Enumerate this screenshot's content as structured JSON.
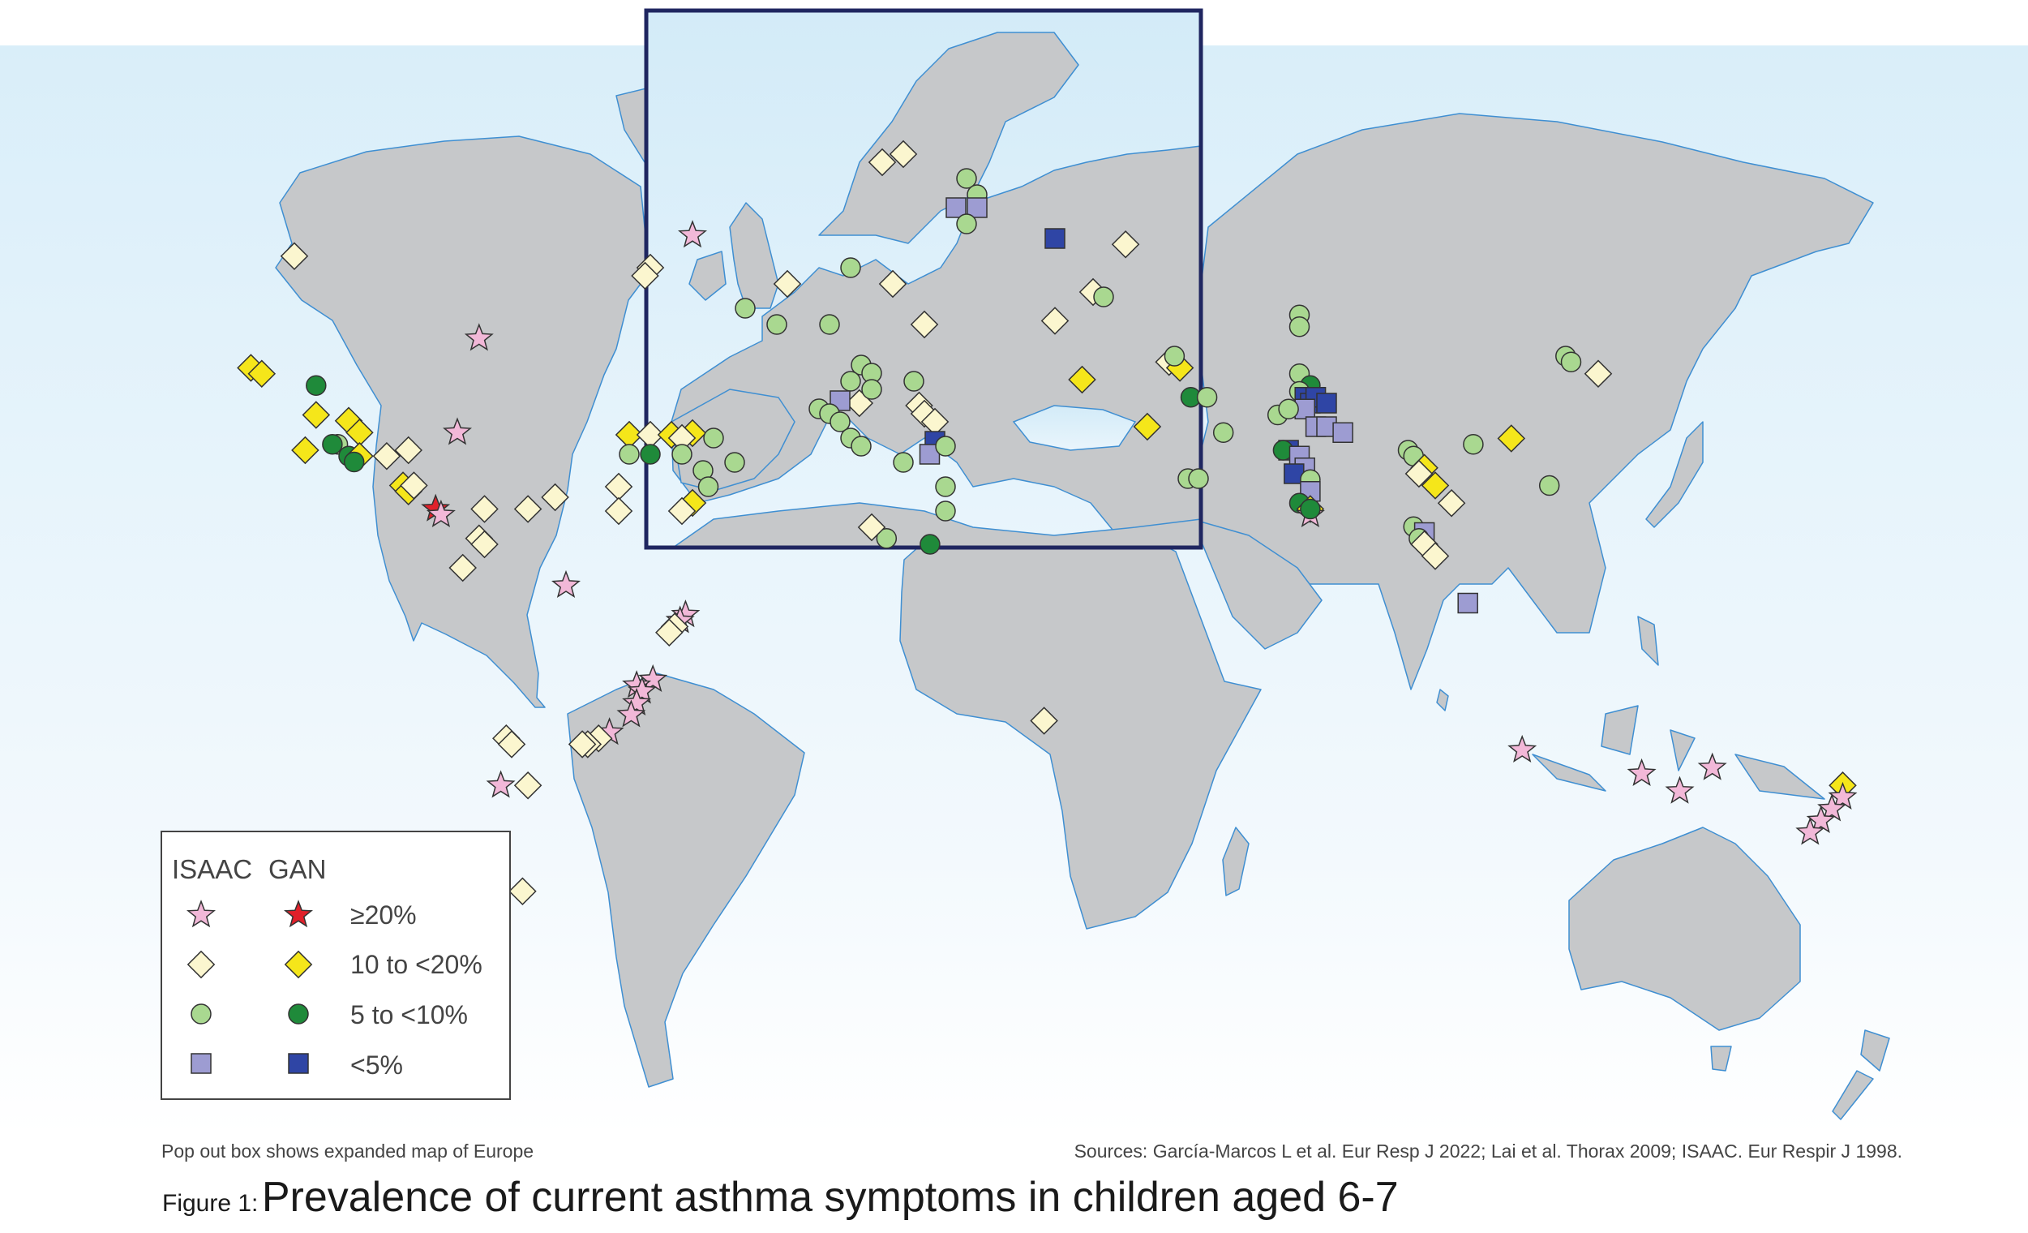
{
  "legend": {
    "header_isaac": "ISAAC",
    "header_gan": "GAN",
    "rows": [
      {
        "label": "≥20%",
        "isaac_symbol": "star",
        "isaac_color": "#f2b8d8",
        "gan_color": "#e0202a"
      },
      {
        "label": "10 to <20%",
        "isaac_symbol": "diamond",
        "isaac_color": "#fbf6cf",
        "gan_color": "#f5e61a"
      },
      {
        "label": "5 to <10%",
        "isaac_symbol": "circle",
        "isaac_color": "#a9d890",
        "gan_color": "#1f8a3a"
      },
      {
        "label": "<5%",
        "isaac_symbol": "square",
        "isaac_color": "#9d9cd2",
        "gan_color": "#2f45a5"
      }
    ]
  },
  "notes": {
    "inset": "Pop out box shows expanded map of Europe",
    "sources": "Sources: García-Marcos L et al. Eur Resp J 2022; Lai et al. Thorax 2009; ISAAC. Eur Respir J 1998."
  },
  "caption": {
    "label": "Figure 1:",
    "title": "Prevalence of current asthma symptoms in children aged 6-7"
  },
  "colors": {
    "ocean_top": "#d9eef9",
    "ocean_bottom": "#ffffff",
    "land": "#c6c8ca",
    "borders": "#3f8fd2",
    "inset_frame": "#1f2660"
  },
  "map_markers": [
    {
      "shape": "diamond",
      "level": "isaac_10_20",
      "lon": -110,
      "lat": 53
    },
    {
      "shape": "star",
      "level": "isaac_20",
      "lon": -76,
      "lat": 39
    },
    {
      "shape": "diamond",
      "level": "gan_10_20",
      "lon": -118,
      "lat": 34
    },
    {
      "shape": "diamond",
      "level": "gan_10_20",
      "lon": -116,
      "lat": 33
    },
    {
      "shape": "circle",
      "level": "gan_5_10",
      "lon": -106,
      "lat": 31
    },
    {
      "shape": "diamond",
      "level": "gan_10_20",
      "lon": -106,
      "lat": 26
    },
    {
      "shape": "diamond",
      "level": "gan_10_20",
      "lon": -100,
      "lat": 25
    },
    {
      "shape": "diamond",
      "level": "gan_10_20",
      "lon": -98,
      "lat": 23
    },
    {
      "shape": "circle",
      "level": "isaac_5_10",
      "lon": -102,
      "lat": 21
    },
    {
      "shape": "diamond",
      "level": "gan_10_20",
      "lon": -108,
      "lat": 20
    },
    {
      "shape": "circle",
      "level": "gan_5_10",
      "lon": -103,
      "lat": 21
    },
    {
      "shape": "circle",
      "level": "gan_5_10",
      "lon": -100,
      "lat": 19
    },
    {
      "shape": "diamond",
      "level": "gan_10_20",
      "lon": -98,
      "lat": 19
    },
    {
      "shape": "circle",
      "level": "gan_5_10",
      "lon": -99,
      "lat": 18
    },
    {
      "shape": "diamond",
      "level": "isaac_10_20",
      "lon": -93,
      "lat": 19
    },
    {
      "shape": "diamond",
      "level": "isaac_10_20",
      "lon": -89,
      "lat": 20
    },
    {
      "shape": "star",
      "level": "isaac_20",
      "lon": -80,
      "lat": 23
    },
    {
      "shape": "diamond",
      "level": "gan_10_20",
      "lon": -90,
      "lat": 14
    },
    {
      "shape": "diamond",
      "level": "gan_10_20",
      "lon": -89,
      "lat": 13
    },
    {
      "shape": "diamond",
      "level": "isaac_10_20",
      "lon": -88,
      "lat": 14
    },
    {
      "shape": "star",
      "level": "gan_20",
      "lon": -84,
      "lat": 10
    },
    {
      "shape": "star",
      "level": "isaac_20",
      "lon": -83,
      "lat": 9
    },
    {
      "shape": "diamond",
      "level": "isaac_10_20",
      "lon": -75,
      "lat": 10
    },
    {
      "shape": "diamond",
      "level": "isaac_10_20",
      "lon": -67,
      "lat": 10
    },
    {
      "shape": "diamond",
      "level": "isaac_10_20",
      "lon": -62,
      "lat": 12
    },
    {
      "shape": "diamond",
      "level": "isaac_10_20",
      "lon": -76,
      "lat": 5
    },
    {
      "shape": "diamond",
      "level": "isaac_10_20",
      "lon": -75,
      "lat": 4
    },
    {
      "shape": "diamond",
      "level": "isaac_10_20",
      "lon": -79,
      "lat": 0
    },
    {
      "shape": "star",
      "level": "isaac_20",
      "lon": -60,
      "lat": -3
    },
    {
      "shape": "star",
      "level": "isaac_20",
      "lon": -38,
      "lat": -8
    },
    {
      "shape": "star",
      "level": "isaac_20",
      "lon": -39,
      "lat": -9
    },
    {
      "shape": "diamond",
      "level": "isaac_10_20",
      "lon": -40,
      "lat": -10
    },
    {
      "shape": "diamond",
      "level": "isaac_10_20",
      "lon": -41,
      "lat": -11
    },
    {
      "shape": "star",
      "level": "isaac_20",
      "lon": -44,
      "lat": -19
    },
    {
      "shape": "star",
      "level": "isaac_20",
      "lon": -47,
      "lat": -20
    },
    {
      "shape": "star",
      "level": "isaac_20",
      "lon": -46,
      "lat": -21
    },
    {
      "shape": "star",
      "level": "isaac_20",
      "lon": -47,
      "lat": -23
    },
    {
      "shape": "star",
      "level": "isaac_20",
      "lon": -48,
      "lat": -25
    },
    {
      "shape": "star",
      "level": "isaac_20",
      "lon": -52,
      "lat": -28
    },
    {
      "shape": "diamond",
      "level": "isaac_10_20",
      "lon": -54,
      "lat": -29
    },
    {
      "shape": "diamond",
      "level": "isaac_10_20",
      "lon": -56,
      "lat": -30
    },
    {
      "shape": "diamond",
      "level": "isaac_10_20",
      "lon": -57,
      "lat": -30
    },
    {
      "shape": "diamond",
      "level": "isaac_10_20",
      "lon": -71,
      "lat": -29
    },
    {
      "shape": "diamond",
      "level": "isaac_10_20",
      "lon": -70,
      "lat": -30
    },
    {
      "shape": "star",
      "level": "isaac_20",
      "lon": -72,
      "lat": -37
    },
    {
      "shape": "diamond",
      "level": "isaac_10_20",
      "lon": -67,
      "lat": -37
    },
    {
      "shape": "diamond",
      "level": "isaac_10_20",
      "lon": -68,
      "lat": -55
    },
    {
      "shape": "diamond",
      "level": "isaac_10_20",
      "lon": -6,
      "lat": 28
    },
    {
      "shape": "circle",
      "level": "isaac_5_10",
      "lon": -1,
      "lat": 5
    },
    {
      "shape": "circle",
      "level": "gan_5_10",
      "lon": 7,
      "lat": 4
    },
    {
      "shape": "diamond",
      "level": "isaac_10_20",
      "lon": 28,
      "lat": -26
    },
    {
      "shape": "diamond",
      "level": "isaac_10_20",
      "lon": 30,
      "lat": 42
    },
    {
      "shape": "diamond",
      "level": "isaac_10_20",
      "lon": 43,
      "lat": 55
    },
    {
      "shape": "square",
      "level": "gan_lt5",
      "lon": 30,
      "lat": 56
    },
    {
      "shape": "diamond",
      "level": "gan_10_20",
      "lon": 35,
      "lat": 32
    },
    {
      "shape": "diamond",
      "level": "gan_10_20",
      "lon": 47,
      "lat": 24
    },
    {
      "shape": "diamond",
      "level": "isaac_10_20",
      "lon": 51,
      "lat": 35
    },
    {
      "shape": "diamond",
      "level": "gan_10_20",
      "lon": 53,
      "lat": 34
    },
    {
      "shape": "circle",
      "level": "isaac_5_10",
      "lon": 52,
      "lat": 36
    },
    {
      "shape": "circle",
      "level": "gan_5_10",
      "lon": 55,
      "lat": 29
    },
    {
      "shape": "circle",
      "level": "isaac_5_10",
      "lon": 58,
      "lat": 29
    },
    {
      "shape": "circle",
      "level": "isaac_5_10",
      "lon": 61,
      "lat": 23
    },
    {
      "shape": "circle",
      "level": "isaac_5_10",
      "lon": 75,
      "lat": 43
    },
    {
      "shape": "circle",
      "level": "isaac_5_10",
      "lon": 75,
      "lat": 41
    },
    {
      "shape": "circle",
      "level": "isaac_5_10",
      "lon": 75,
      "lat": 33
    },
    {
      "shape": "circle",
      "level": "gan_5_10",
      "lon": 77,
      "lat": 31
    },
    {
      "shape": "circle",
      "level": "isaac_5_10",
      "lon": 75,
      "lat": 30
    },
    {
      "shape": "square",
      "level": "gan_lt5",
      "lon": 76,
      "lat": 29
    },
    {
      "shape": "square",
      "level": "gan_lt5",
      "lon": 77,
      "lat": 28
    },
    {
      "shape": "square",
      "level": "gan_lt5",
      "lon": 78,
      "lat": 29
    },
    {
      "shape": "square",
      "level": "gan_lt5",
      "lon": 80,
      "lat": 28
    },
    {
      "shape": "square",
      "level": "isaac_lt5",
      "lon": 76,
      "lat": 27
    },
    {
      "shape": "circle",
      "level": "isaac_5_10",
      "lon": 71,
      "lat": 26
    },
    {
      "shape": "circle",
      "level": "isaac_5_10",
      "lon": 73,
      "lat": 27
    },
    {
      "shape": "square",
      "level": "isaac_lt5",
      "lon": 78,
      "lat": 24
    },
    {
      "shape": "square",
      "level": "isaac_lt5",
      "lon": 80,
      "lat": 24
    },
    {
      "shape": "square",
      "level": "isaac_lt5",
      "lon": 83,
      "lat": 23
    },
    {
      "shape": "square",
      "level": "gan_lt5",
      "lon": 73,
      "lat": 20
    },
    {
      "shape": "circle",
      "level": "gan_5_10",
      "lon": 72,
      "lat": 20
    },
    {
      "shape": "square",
      "level": "isaac_lt5",
      "lon": 75,
      "lat": 19
    },
    {
      "shape": "square",
      "level": "isaac_lt5",
      "lon": 76,
      "lat": 17
    },
    {
      "shape": "square",
      "level": "gan_lt5",
      "lon": 74,
      "lat": 16
    },
    {
      "shape": "circle",
      "level": "isaac_5_10",
      "lon": 77,
      "lat": 15
    },
    {
      "shape": "square",
      "level": "isaac_lt5",
      "lon": 77,
      "lat": 13
    },
    {
      "shape": "circle",
      "level": "gan_5_10",
      "lon": 75,
      "lat": 11
    },
    {
      "shape": "diamond",
      "level": "gan_10_20",
      "lon": 77,
      "lat": 10
    },
    {
      "shape": "star",
      "level": "isaac_20",
      "lon": 77,
      "lat": 9
    },
    {
      "shape": "circle",
      "level": "gan_5_10",
      "lon": 77,
      "lat": 10
    },
    {
      "shape": "circle",
      "level": "isaac_5_10",
      "lon": 95,
      "lat": 20
    },
    {
      "shape": "circle",
      "level": "isaac_5_10",
      "lon": 96,
      "lat": 19
    },
    {
      "shape": "diamond",
      "level": "gan_10_20",
      "lon": 98,
      "lat": 17
    },
    {
      "shape": "diamond",
      "level": "isaac_10_20",
      "lon": 97,
      "lat": 16
    },
    {
      "shape": "diamond",
      "level": "gan_10_20",
      "lon": 100,
      "lat": 14
    },
    {
      "shape": "diamond",
      "level": "isaac_10_20",
      "lon": 103,
      "lat": 11
    },
    {
      "shape": "circle",
      "level": "isaac_5_10",
      "lon": 96,
      "lat": 7
    },
    {
      "shape": "square",
      "level": "isaac_lt5",
      "lon": 98,
      "lat": 6
    },
    {
      "shape": "circle",
      "level": "isaac_5_10",
      "lon": 97,
      "lat": 5
    },
    {
      "shape": "diamond",
      "level": "isaac_10_20",
      "lon": 98,
      "lat": 4
    },
    {
      "shape": "diamond",
      "level": "isaac_10_20",
      "lon": 100,
      "lat": 2
    },
    {
      "shape": "square",
      "level": "isaac_lt5",
      "lon": 106,
      "lat": -6
    },
    {
      "shape": "circle",
      "level": "isaac_5_10",
      "lon": 121,
      "lat": 14
    },
    {
      "shape": "circle",
      "level": "isaac_5_10",
      "lon": 107,
      "lat": 21
    },
    {
      "shape": "diamond",
      "level": "gan_10_20",
      "lon": 114,
      "lat": 22
    },
    {
      "shape": "circle",
      "level": "isaac_5_10",
      "lon": 124,
      "lat": 36
    },
    {
      "shape": "circle",
      "level": "isaac_5_10",
      "lon": 125,
      "lat": 35
    },
    {
      "shape": "diamond",
      "level": "isaac_10_20",
      "lon": 130,
      "lat": 33
    },
    {
      "shape": "star",
      "level": "isaac_20",
      "lon": 116,
      "lat": -31
    },
    {
      "shape": "star",
      "level": "isaac_20",
      "lon": 138,
      "lat": -35
    },
    {
      "shape": "star",
      "level": "isaac_20",
      "lon": 145,
      "lat": -38
    },
    {
      "shape": "star",
      "level": "isaac_20",
      "lon": 151,
      "lat": -34
    },
    {
      "shape": "diamond",
      "level": "gan_10_20",
      "lon": 175,
      "lat": -37
    },
    {
      "shape": "star",
      "level": "isaac_20",
      "lon": 175,
      "lat": -39
    },
    {
      "shape": "star",
      "level": "isaac_20",
      "lon": 173,
      "lat": -41
    },
    {
      "shape": "star",
      "level": "isaac_20",
      "lon": 171,
      "lat": -43
    },
    {
      "shape": "star",
      "level": "isaac_20",
      "lon": 169,
      "lat": -45
    }
  ],
  "inset_markers": [
    {
      "shape": "star",
      "level": "isaac_20",
      "lon": -2,
      "lat": 55.5
    },
    {
      "shape": "diamond",
      "level": "isaac_10_20",
      "lon": -6,
      "lat": 53.5
    },
    {
      "shape": "diamond",
      "level": "isaac_10_20",
      "lon": -6.5,
      "lat": 53
    },
    {
      "shape": "diamond",
      "level": "isaac_10_20",
      "lon": 16,
      "lat": 60
    },
    {
      "shape": "diamond",
      "level": "isaac_10_20",
      "lon": 18,
      "lat": 60.5
    },
    {
      "shape": "circle",
      "level": "isaac_5_10",
      "lon": 24,
      "lat": 59
    },
    {
      "shape": "circle",
      "level": "isaac_5_10",
      "lon": 25,
      "lat": 58
    },
    {
      "shape": "square",
      "level": "isaac_lt5",
      "lon": 23,
      "lat": 57.2
    },
    {
      "shape": "square",
      "level": "isaac_lt5",
      "lon": 25,
      "lat": 57.2
    },
    {
      "shape": "circle",
      "level": "isaac_5_10",
      "lon": 24,
      "lat": 56.2
    },
    {
      "shape": "diamond",
      "level": "isaac_10_20",
      "lon": 7,
      "lat": 52.5
    },
    {
      "shape": "circle",
      "level": "isaac_5_10",
      "lon": 13,
      "lat": 53.5
    },
    {
      "shape": "diamond",
      "level": "isaac_10_20",
      "lon": 17,
      "lat": 52.5
    },
    {
      "shape": "diamond",
      "level": "isaac_10_20",
      "lon": 36,
      "lat": 52
    },
    {
      "shape": "circle",
      "level": "isaac_5_10",
      "lon": 37,
      "lat": 51.7
    },
    {
      "shape": "circle",
      "level": "isaac_5_10",
      "lon": 3,
      "lat": 51
    },
    {
      "shape": "circle",
      "level": "isaac_5_10",
      "lon": 6,
      "lat": 50
    },
    {
      "shape": "circle",
      "level": "isaac_5_10",
      "lon": 11,
      "lat": 50
    },
    {
      "shape": "diamond",
      "level": "isaac_10_20",
      "lon": 20,
      "lat": 50
    },
    {
      "shape": "circle",
      "level": "isaac_5_10",
      "lon": 14,
      "lat": 47.5
    },
    {
      "shape": "circle",
      "level": "isaac_5_10",
      "lon": 15,
      "lat": 47
    },
    {
      "shape": "circle",
      "level": "isaac_5_10",
      "lon": 13,
      "lat": 46.5
    },
    {
      "shape": "circle",
      "level": "isaac_5_10",
      "lon": 15,
      "lat": 46
    },
    {
      "shape": "square",
      "level": "isaac_lt5",
      "lon": 12,
      "lat": 45.3
    },
    {
      "shape": "circle",
      "level": "isaac_5_10",
      "lon": 10,
      "lat": 44.8
    },
    {
      "shape": "circle",
      "level": "isaac_5_10",
      "lon": 11,
      "lat": 44.5
    },
    {
      "shape": "circle",
      "level": "isaac_5_10",
      "lon": 12,
      "lat": 44
    },
    {
      "shape": "circle",
      "level": "isaac_5_10",
      "lon": 13,
      "lat": 43
    },
    {
      "shape": "circle",
      "level": "isaac_5_10",
      "lon": 14,
      "lat": 42.5
    },
    {
      "shape": "circle",
      "level": "isaac_5_10",
      "lon": 19,
      "lat": 46.5
    },
    {
      "shape": "diamond",
      "level": "isaac_10_20",
      "lon": 19.5,
      "lat": 45
    },
    {
      "shape": "diamond",
      "level": "isaac_10_20",
      "lon": 20,
      "lat": 44.5
    },
    {
      "shape": "diamond",
      "level": "isaac_10_20",
      "lon": 21,
      "lat": 44
    },
    {
      "shape": "square",
      "level": "gan_lt5",
      "lon": 21,
      "lat": 42.8
    },
    {
      "shape": "square",
      "level": "isaac_lt5",
      "lon": 20.5,
      "lat": 42
    },
    {
      "shape": "circle",
      "level": "isaac_5_10",
      "lon": 22,
      "lat": 42.5
    },
    {
      "shape": "circle",
      "level": "isaac_5_10",
      "lon": 18,
      "lat": 41.5
    },
    {
      "shape": "circle",
      "level": "isaac_5_10",
      "lon": 22,
      "lat": 40
    },
    {
      "shape": "circle",
      "level": "isaac_5_10",
      "lon": 22,
      "lat": 38.5
    },
    {
      "shape": "diamond",
      "level": "isaac_10_20",
      "lon": 15,
      "lat": 37.5
    },
    {
      "shape": "diamond",
      "level": "gan_10_20",
      "lon": -8,
      "lat": 43.2
    },
    {
      "shape": "diamond",
      "level": "isaac_10_20",
      "lon": -6,
      "lat": 43.2
    },
    {
      "shape": "diamond",
      "level": "gan_10_20",
      "lon": -4,
      "lat": 43.2
    },
    {
      "shape": "diamond",
      "level": "gan_10_20",
      "lon": -2,
      "lat": 43.3
    },
    {
      "shape": "diamond",
      "level": "isaac_10_20",
      "lon": -3,
      "lat": 43
    },
    {
      "shape": "circle",
      "level": "isaac_5_10",
      "lon": 0,
      "lat": 43
    },
    {
      "shape": "circle",
      "level": "isaac_5_10",
      "lon": -8,
      "lat": 42
    },
    {
      "shape": "circle",
      "level": "gan_5_10",
      "lon": -6,
      "lat": 42
    },
    {
      "shape": "circle",
      "level": "isaac_5_10",
      "lon": -3,
      "lat": 42
    },
    {
      "shape": "circle",
      "level": "isaac_5_10",
      "lon": 2,
      "lat": 41.5
    },
    {
      "shape": "circle",
      "level": "isaac_5_10",
      "lon": -1,
      "lat": 41
    },
    {
      "shape": "diamond",
      "level": "isaac_10_20",
      "lon": -9,
      "lat": 40
    },
    {
      "shape": "circle",
      "level": "isaac_5_10",
      "lon": -0.5,
      "lat": 40
    },
    {
      "shape": "diamond",
      "level": "gan_10_20",
      "lon": -2,
      "lat": 39
    },
    {
      "shape": "diamond",
      "level": "isaac_10_20",
      "lon": -3,
      "lat": 38.5
    },
    {
      "shape": "diamond",
      "level": "isaac_10_20",
      "lon": -9,
      "lat": 38.5
    },
    {
      "shape": "circle",
      "level": "isaac_5_10",
      "lon": 45,
      "lat": 40.5
    },
    {
      "shape": "circle",
      "level": "isaac_5_10",
      "lon": 46,
      "lat": 40.5
    }
  ]
}
